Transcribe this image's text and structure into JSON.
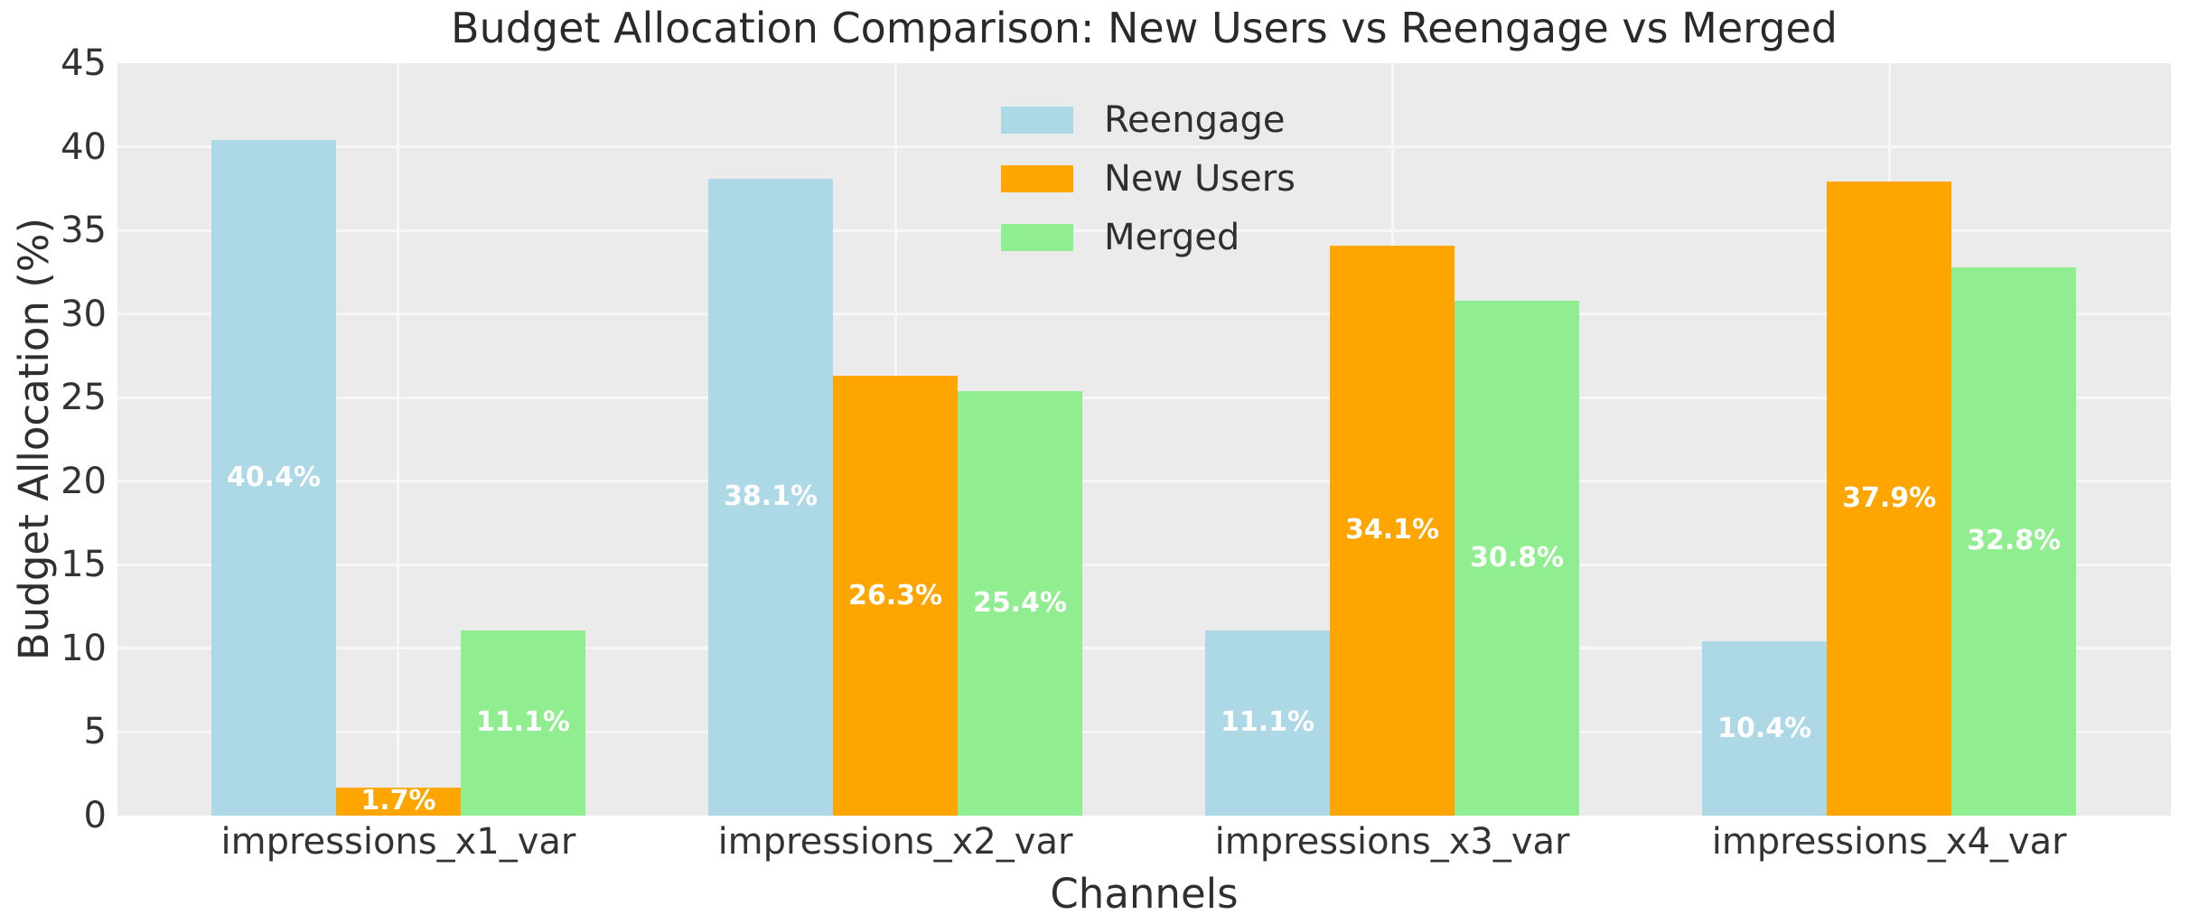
{
  "chart_data": {
    "type": "bar",
    "title": "Budget Allocation Comparison: New Users vs Reengage vs Merged",
    "xlabel": "Channels",
    "ylabel": "Budget Allocation (%)",
    "categories": [
      "impressions_x1_var",
      "impressions_x2_var",
      "impressions_x3_var",
      "impressions_x4_var"
    ],
    "series": [
      {
        "name": "Reengage",
        "color": "#ADD8E6",
        "values": [
          40.4,
          38.1,
          11.1,
          10.4
        ],
        "labels": [
          "40.4%",
          "38.1%",
          "11.1%",
          "10.4%"
        ]
      },
      {
        "name": "New Users",
        "color": "#FFA500",
        "values": [
          1.7,
          26.3,
          34.1,
          37.9
        ],
        "labels": [
          "1.7%",
          "26.3%",
          "34.1%",
          "37.9%"
        ]
      },
      {
        "name": "Merged",
        "color": "#90EE90",
        "values": [
          11.1,
          25.4,
          30.8,
          32.8
        ],
        "labels": [
          "11.1%",
          "25.4%",
          "30.8%",
          "32.8%"
        ]
      }
    ],
    "ylim": [
      0,
      45
    ],
    "yticks": [
      0,
      5,
      10,
      15,
      20,
      25,
      30,
      35,
      40,
      45
    ],
    "ytick_labels": [
      "0",
      "5",
      "10",
      "15",
      "20",
      "25",
      "30",
      "35",
      "40",
      "45"
    ],
    "grid": true,
    "legend": {
      "position": "upper center",
      "entries": [
        "Reengage",
        "New Users",
        "Merged"
      ]
    },
    "colors": {
      "figure_background": "#FFFFFF",
      "plot_background": "#EBEBEB",
      "gridline": "#F7F7F7",
      "bar_label_text": "#FFFFFF",
      "text": "#2F2F2F"
    }
  }
}
